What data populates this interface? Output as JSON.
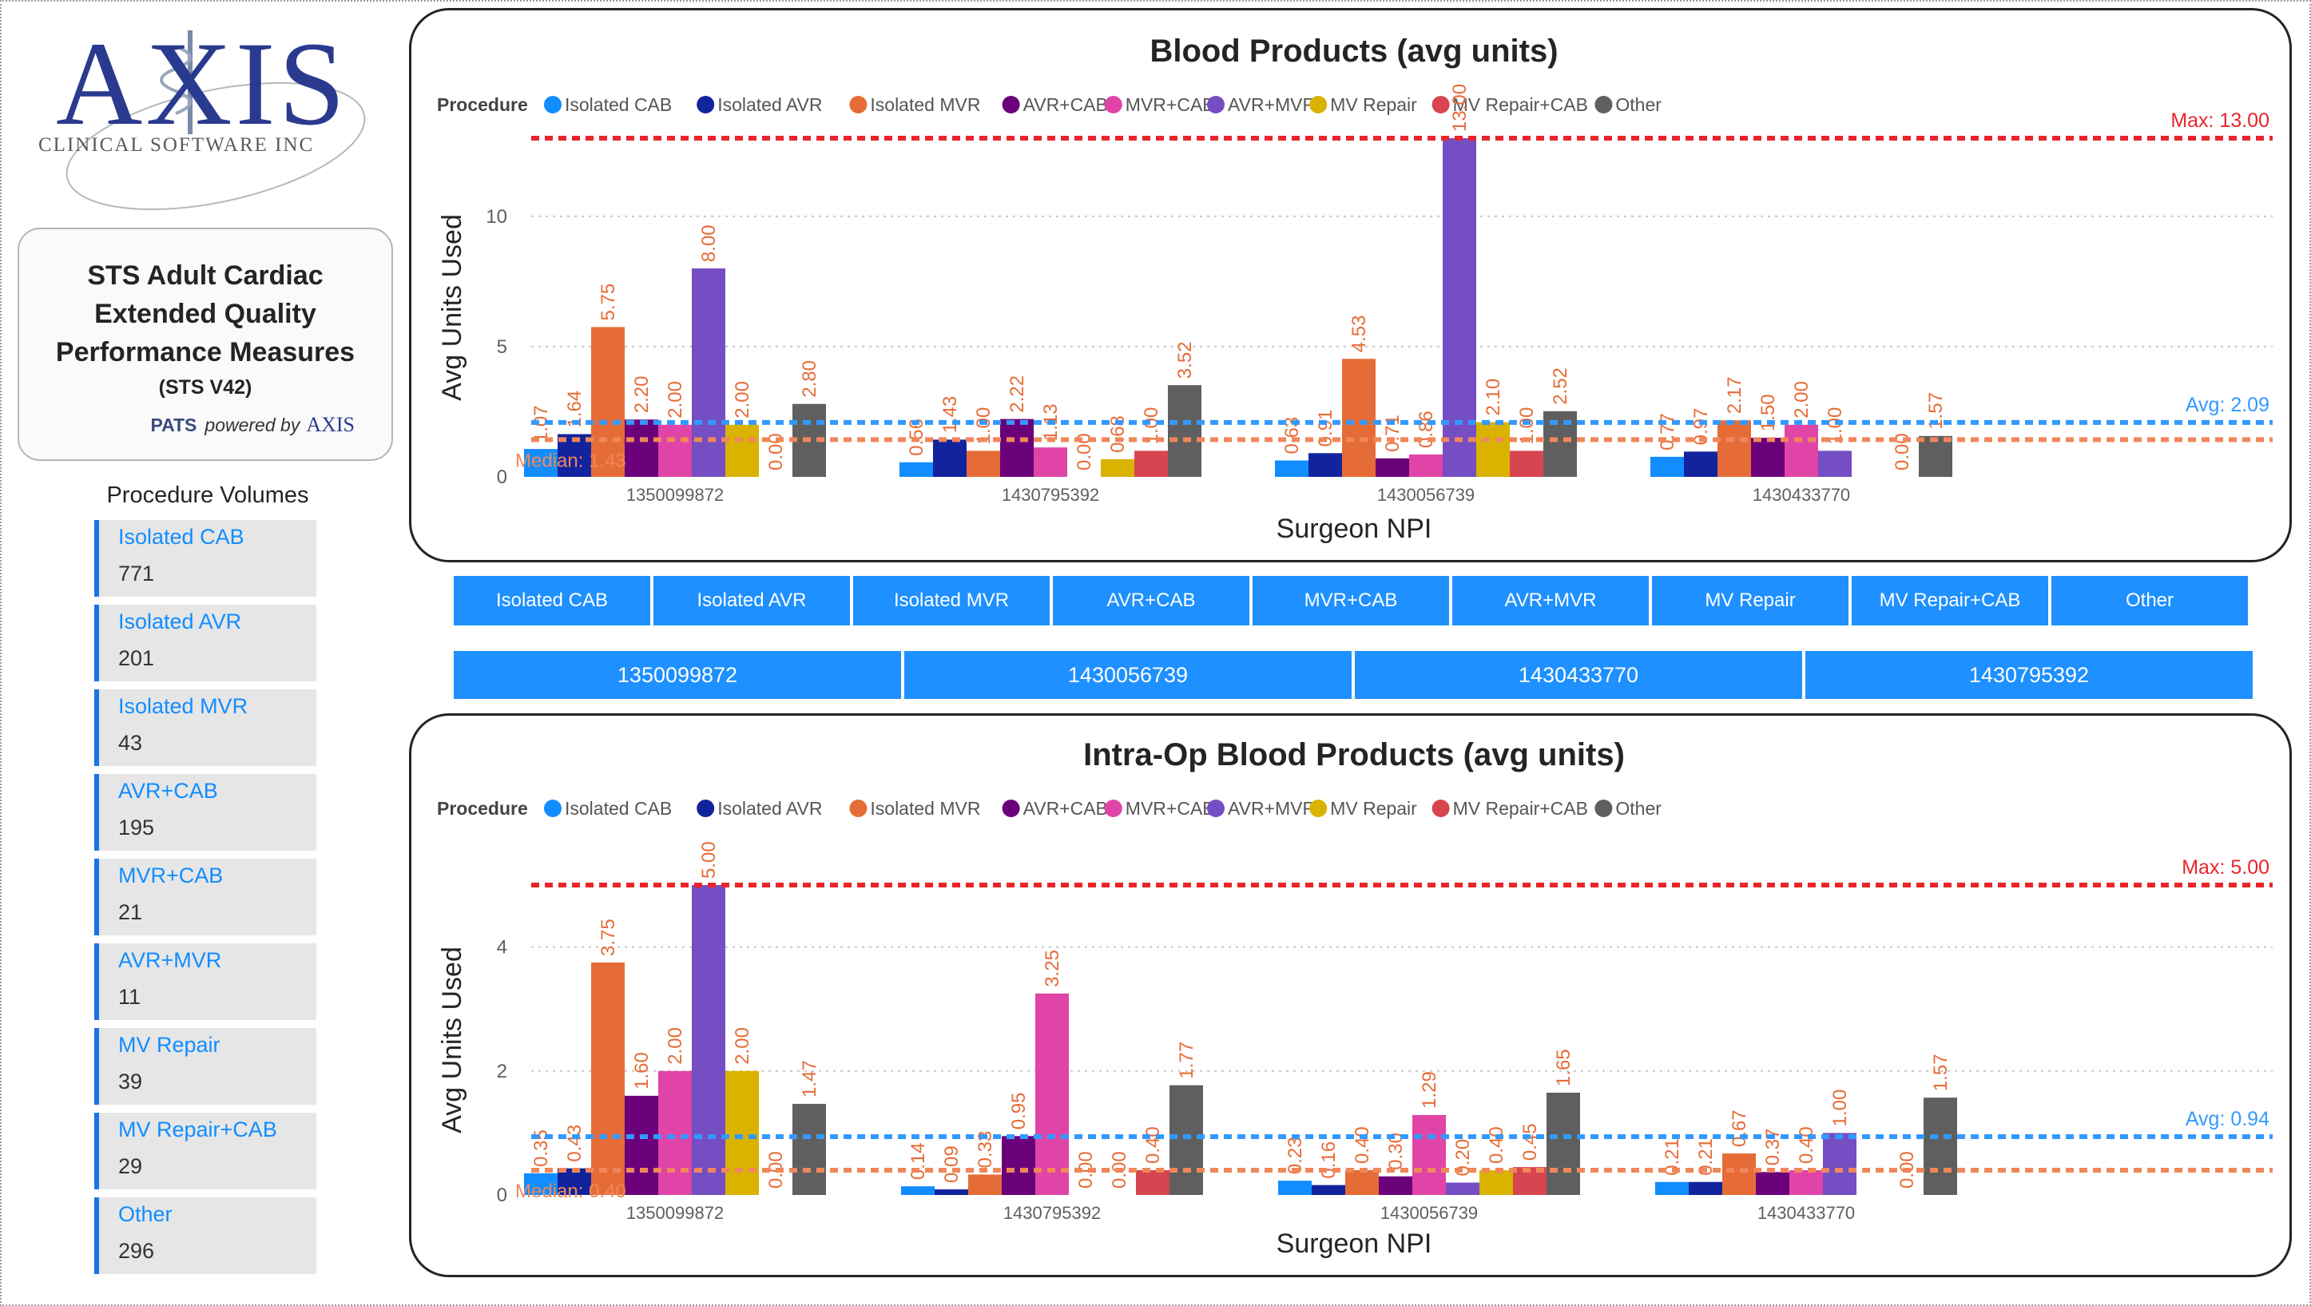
{
  "logo": {
    "name": "AXIS",
    "subtitle": "CLINICAL SOFTWARE INC"
  },
  "title_card": {
    "line1": "STS Adult Cardiac",
    "line2": "Extended Quality",
    "line3": "Performance Measures",
    "version": "(STS V42)",
    "pats": "PATS",
    "powered_by": "powered by",
    "brand": "AXIS"
  },
  "procedure_volumes": {
    "title": "Procedure Volumes",
    "items": [
      {
        "label": "Isolated CAB",
        "value": "771"
      },
      {
        "label": "Isolated AVR",
        "value": "201"
      },
      {
        "label": "Isolated MVR",
        "value": "43"
      },
      {
        "label": "AVR+CAB",
        "value": "195"
      },
      {
        "label": "MVR+CAB",
        "value": "21"
      },
      {
        "label": "AVR+MVR",
        "value": "11"
      },
      {
        "label": "MV Repair",
        "value": "39"
      },
      {
        "label": "MV Repair+CAB",
        "value": "29"
      },
      {
        "label": "Other",
        "value": "296"
      }
    ]
  },
  "procedure_slicer": [
    "Isolated CAB",
    "Isolated AVR",
    "Isolated MVR",
    "AVR+CAB",
    "MVR+CAB",
    "AVR+MVR",
    "MV Repair",
    "MV Repair+CAB",
    "Other"
  ],
  "surgeon_slicer": [
    "1350099872",
    "1430056739",
    "1430433770",
    "1430795392"
  ],
  "colors": {
    "series": [
      "#118dff",
      "#12239e",
      "#e66c37",
      "#6b007b",
      "#e044a7",
      "#744ec2",
      "#d9b300",
      "#d64550",
      "#5f5f5f"
    ],
    "max_line": "#e8252a",
    "avg_line": "#3399ff",
    "median_line": "#f0875a",
    "data_label": "#e66c37",
    "slicer": "#1e90ff"
  },
  "chart_data": [
    {
      "type": "bar",
      "title": "Blood Products (avg units)",
      "xlabel": "Surgeon NPI",
      "ylabel": "Avg Units Used",
      "legend_title": "Procedure",
      "legend_position": "top-left",
      "ylim": [
        0,
        13
      ],
      "yticks": [
        0,
        5,
        10
      ],
      "grid": true,
      "categories": [
        "1350099872",
        "1430795392",
        "1430056739",
        "1430433770"
      ],
      "series": [
        {
          "name": "Isolated CAB",
          "values": [
            1.07,
            0.56,
            0.63,
            0.77
          ]
        },
        {
          "name": "Isolated AVR",
          "values": [
            1.64,
            1.43,
            0.91,
            0.97
          ]
        },
        {
          "name": "Isolated MVR",
          "values": [
            5.75,
            1.0,
            4.53,
            2.17
          ]
        },
        {
          "name": "AVR+CAB",
          "values": [
            2.2,
            2.22,
            0.71,
            1.5
          ]
        },
        {
          "name": "MVR+CAB",
          "values": [
            2.0,
            1.13,
            0.86,
            2.0
          ]
        },
        {
          "name": "AVR+MVR",
          "values": [
            8.0,
            0.0,
            13.0,
            1.0
          ]
        },
        {
          "name": "MV Repair",
          "values": [
            2.0,
            0.68,
            2.1,
            null
          ]
        },
        {
          "name": "MV Repair+CAB",
          "values": [
            0.0,
            1.0,
            1.0,
            0.0
          ]
        },
        {
          "name": "Other",
          "values": [
            2.8,
            3.52,
            2.52,
            1.57
          ]
        }
      ],
      "reference_lines": [
        {
          "label": "Max: 13.00",
          "value": 13.0,
          "kind": "max"
        },
        {
          "label": "Avg: 2.09",
          "value": 2.09,
          "kind": "avg"
        },
        {
          "label": "Median: 1.43",
          "value": 1.43,
          "kind": "median"
        }
      ]
    },
    {
      "type": "bar",
      "title": "Intra-Op Blood Products (avg units)",
      "xlabel": "Surgeon NPI",
      "ylabel": "Avg Units Used",
      "legend_title": "Procedure",
      "legend_position": "top-left",
      "ylim": [
        0,
        5
      ],
      "yticks": [
        0,
        2,
        4
      ],
      "grid": true,
      "categories": [
        "1350099872",
        "1430795392",
        "1430056739",
        "1430433770"
      ],
      "series": [
        {
          "name": "Isolated CAB",
          "values": [
            0.35,
            0.14,
            0.23,
            0.21
          ]
        },
        {
          "name": "Isolated AVR",
          "values": [
            0.43,
            0.09,
            0.16,
            0.21
          ]
        },
        {
          "name": "Isolated MVR",
          "values": [
            3.75,
            0.33,
            0.4,
            0.67
          ]
        },
        {
          "name": "AVR+CAB",
          "values": [
            1.6,
            0.95,
            0.3,
            0.37
          ]
        },
        {
          "name": "MVR+CAB",
          "values": [
            2.0,
            3.25,
            1.29,
            0.4
          ]
        },
        {
          "name": "AVR+MVR",
          "values": [
            5.0,
            0.0,
            0.2,
            1.0
          ]
        },
        {
          "name": "MV Repair",
          "values": [
            2.0,
            0.0,
            0.4,
            null
          ]
        },
        {
          "name": "MV Repair+CAB",
          "values": [
            0.0,
            0.4,
            0.45,
            0.0
          ]
        },
        {
          "name": "Other",
          "values": [
            1.47,
            1.77,
            1.65,
            1.57
          ]
        }
      ],
      "reference_lines": [
        {
          "label": "Max: 5.00",
          "value": 5.0,
          "kind": "max"
        },
        {
          "label": "Avg: 0.94",
          "value": 0.94,
          "kind": "avg"
        },
        {
          "label": "Median: 0.40",
          "value": 0.4,
          "kind": "median"
        }
      ]
    }
  ]
}
